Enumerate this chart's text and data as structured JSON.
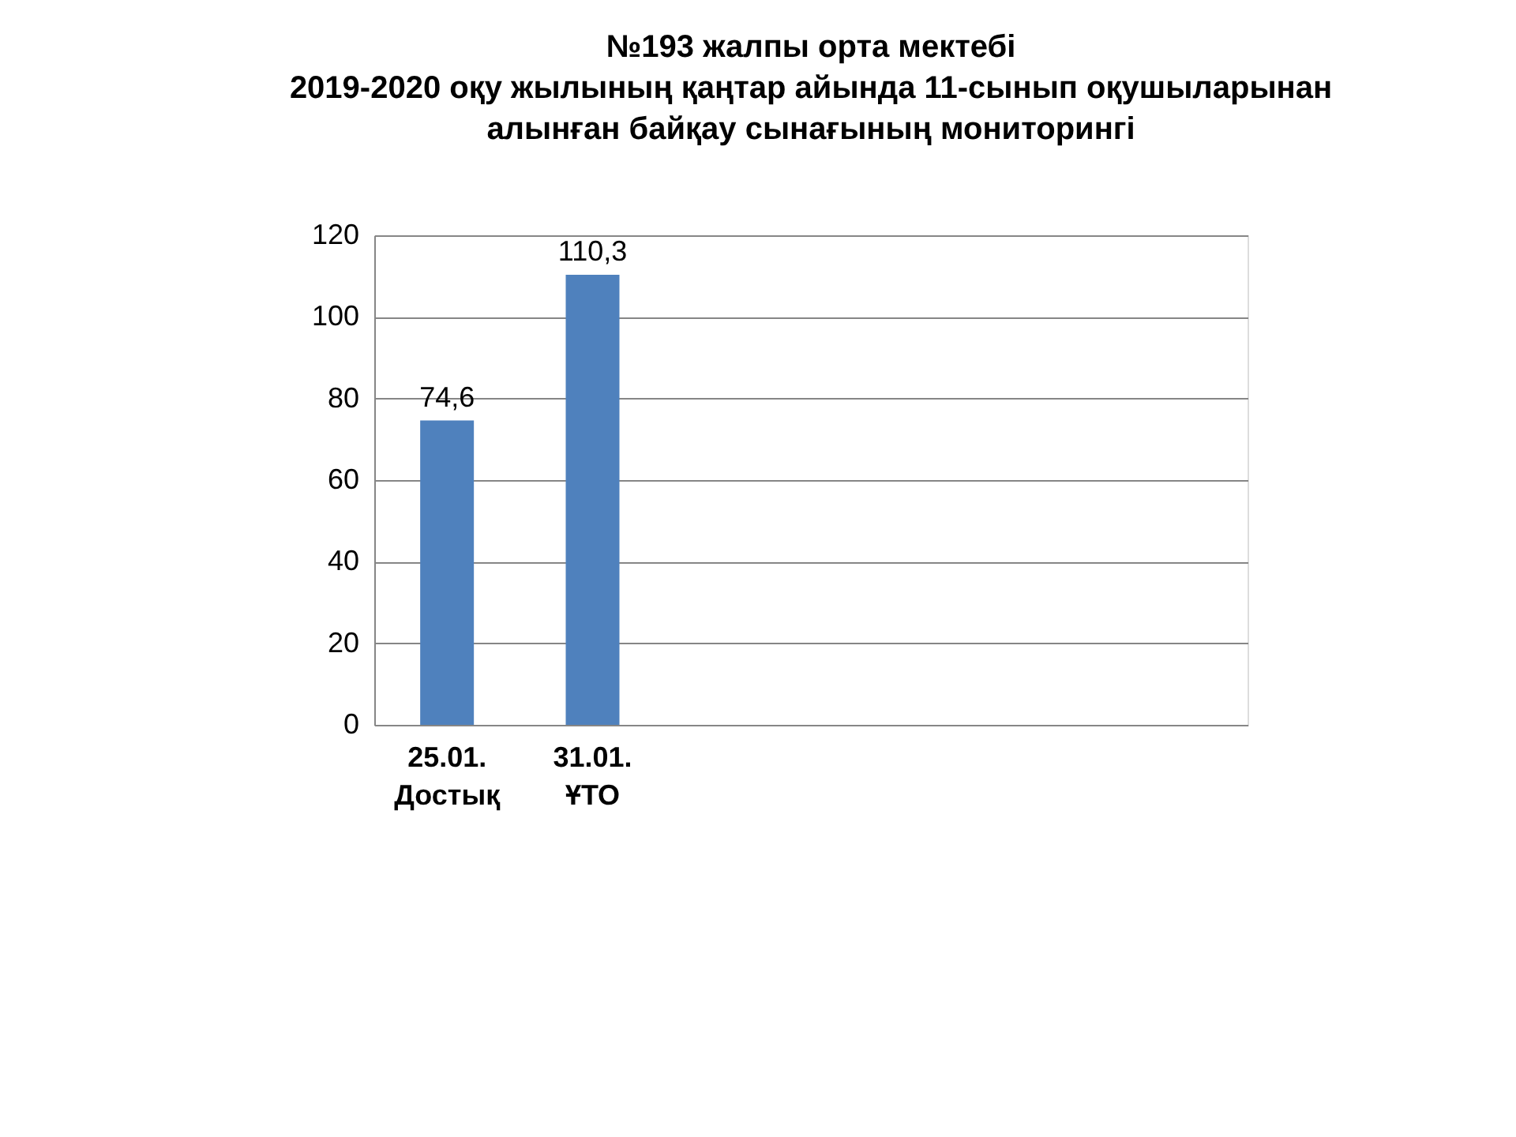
{
  "chart_data": {
    "type": "bar",
    "title": [
      "№193  жалпы  орта  мектебі",
      "2019-2020  оқу жылының қаңтар айында 11-сынып оқушыларынан",
      "алынған байқау сынағының мониторингі"
    ],
    "categories": [
      "25.01. Достық",
      "31.01. ҰТО",
      null,
      null,
      null,
      null
    ],
    "values": [
      74.6,
      110.3,
      null,
      null,
      null,
      null
    ],
    "value_labels": [
      "74,6",
      "110,3",
      null,
      null,
      null,
      null
    ],
    "color": "#4f81bd",
    "ylim": [
      0,
      120
    ],
    "yticks": [
      0,
      20,
      40,
      60,
      80,
      100,
      120
    ],
    "grid": "y"
  }
}
